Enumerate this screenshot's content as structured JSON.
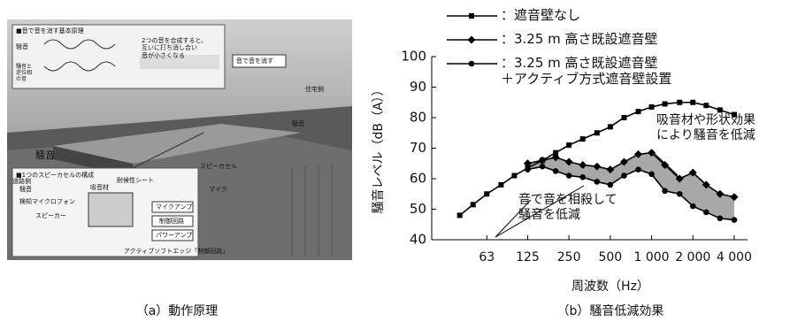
{
  "figure_a": {
    "principle_title": "■音で音を消す基本原理",
    "principle_note": "2つの音を合成すると、\n互いに打ち消し合い\n音が小さくなる",
    "noise": "騒音",
    "antiphase": "騒音と\n逆位相\nの音",
    "callout": "音で音を消す",
    "residential_side": "住宅側",
    "noise_right": "騒音",
    "noise_left": "騒音",
    "road_side": "道路側",
    "speaker_cell": "スピーカセル",
    "mic": "マイク",
    "cell_title": "■1つのスピーカセルの構成",
    "cell_noise": "騒音",
    "detect_mic": "検知マイクロフォン",
    "speaker": "スピーカー",
    "sound_material": "吸音材",
    "weather_sheet": "耐候性シート",
    "mic_amp": "マイクアンプ",
    "control_circuit": "制御回路",
    "power_amp": "パワーアンプ",
    "edge_caption": "アクティブソフトエッジ「制御回路」",
    "caption": "（a）動作原理"
  },
  "chart_data": {
    "type": "line",
    "caption": "（b）騒音低減効果",
    "x_label": "周波数（Hz）",
    "y_label": "騒音レベル（dB（A））",
    "log_x": true,
    "x": [
      40,
      50,
      63,
      80,
      100,
      125,
      160,
      200,
      250,
      315,
      400,
      500,
      630,
      800,
      1000,
      1250,
      1600,
      2000,
      2500,
      3150,
      4000
    ],
    "series": [
      {
        "name": "：遮音壁なし",
        "color": "#000000",
        "marker": "square",
        "values": [
          48,
          51.5,
          55,
          58,
          61,
          63.5,
          66,
          68.5,
          71,
          73,
          75,
          77,
          80,
          82,
          83.5,
          84.5,
          85,
          85,
          84,
          82.5,
          81
        ]
      },
      {
        "name": "：3.25 m 高さ既設遮音壁",
        "color": "#000000",
        "marker": "diamond",
        "values": [
          null,
          null,
          null,
          null,
          null,
          65,
          66,
          67,
          65.5,
          64.5,
          64,
          63,
          65.5,
          68,
          68.5,
          64.5,
          60,
          62,
          58,
          55,
          54
        ]
      },
      {
        "name": "：3.25 m 高さ既設遮音壁\n＋アクティブ方式遮音壁設置",
        "color": "#000000",
        "marker": "circle",
        "values": [
          null,
          null,
          null,
          null,
          null,
          63,
          64,
          62.5,
          61,
          60.5,
          59,
          58,
          61,
          63,
          61.5,
          56,
          55,
          51,
          49,
          47,
          46.5
        ]
      }
    ],
    "area_color": "#a8a8a8",
    "xlim": [
      25,
      5000
    ],
    "xticks": [
      63,
      125,
      250,
      500,
      {
        "value": 1000,
        "label": "1 000"
      },
      {
        "value": 2000,
        "label": "2 000"
      },
      {
        "value": 4000,
        "label": "4 000"
      }
    ],
    "ylim": [
      40,
      100
    ],
    "yticks": [
      40,
      50,
      60,
      70,
      80,
      90,
      100
    ],
    "grid": false,
    "annotations": [
      "吸音材や形状効果\nにより騒音を低減",
      "音で音を相殺して\n騒音を低減"
    ]
  }
}
